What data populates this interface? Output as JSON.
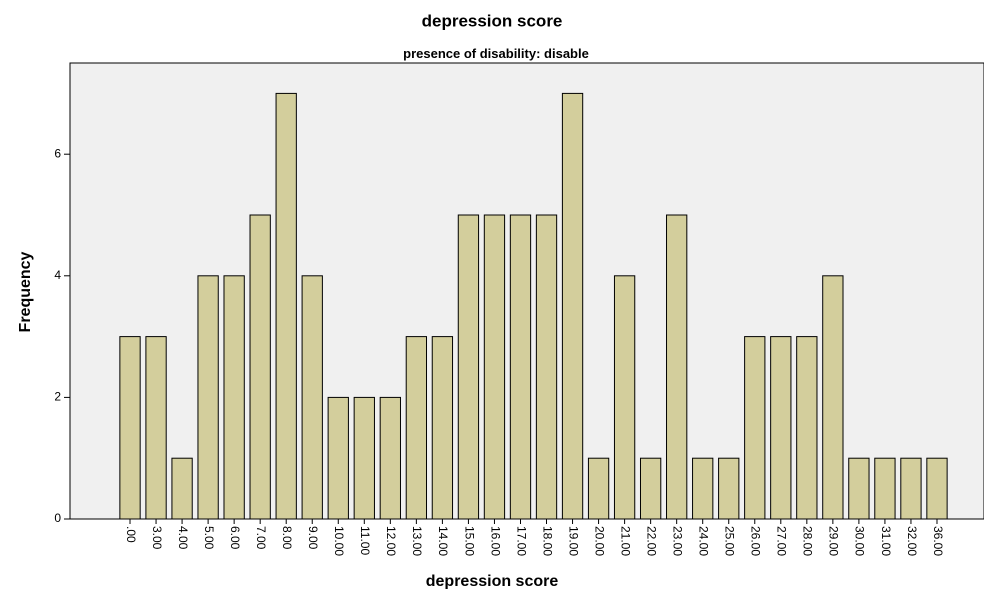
{
  "chart_data": {
    "type": "bar",
    "title": "depression score",
    "subtitle": "presence of disability: disable",
    "x_label": "depression score",
    "y_label": "Frequency",
    "categories": [
      ".00",
      "3.00",
      "4.00",
      "5.00",
      "6.00",
      "7.00",
      "8.00",
      "9.00",
      "10.00",
      "11.00",
      "12.00",
      "13.00",
      "14.00",
      "15.00",
      "16.00",
      "17.00",
      "18.00",
      "19.00",
      "20.00",
      "21.00",
      "22.00",
      "23.00",
      "24.00",
      "25.00",
      "26.00",
      "27.00",
      "28.00",
      "29.00",
      "30.00",
      "31.00",
      "32.00",
      "36.00"
    ],
    "values": [
      3,
      3,
      1,
      4,
      4,
      5,
      7,
      4,
      2,
      2,
      2,
      3,
      3,
      5,
      5,
      5,
      5,
      7,
      1,
      4,
      1,
      5,
      1,
      1,
      3,
      3,
      3,
      4,
      1,
      1,
      1,
      1
    ],
    "color": "#d3ce9c",
    "ylim": [
      0,
      7.5
    ],
    "yticks": [
      0,
      2,
      4,
      6
    ]
  }
}
